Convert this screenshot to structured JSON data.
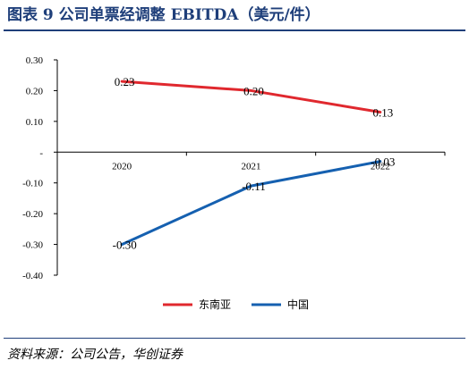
{
  "title": "图表 9 公司单票经调整 EBITDA（美元/件）",
  "source": "资料来源：公司公告，华创证券",
  "chart_data": {
    "type": "line",
    "categories": [
      "2020",
      "2021",
      "2022"
    ],
    "series": [
      {
        "name": "东南亚",
        "color": "#e0282e",
        "values": [
          0.23,
          0.2,
          0.13
        ],
        "labels": [
          "0.23",
          "0.20",
          "0.13"
        ]
      },
      {
        "name": "中国",
        "color": "#1560b0",
        "values": [
          -0.3,
          -0.11,
          -0.03
        ],
        "labels": [
          "-0.30",
          "-0.11",
          "-0.03"
        ]
      }
    ],
    "ylim": [
      -0.4,
      0.3
    ],
    "yticks": [
      0.3,
      0.2,
      0.1,
      0,
      -0.1,
      -0.2,
      -0.3,
      -0.4
    ],
    "ytick_labels": [
      "0.30",
      "0.20",
      "0.10",
      "-",
      "-0.10",
      "-0.20",
      "-0.30",
      "-0.40"
    ],
    "legend_position": "bottom",
    "grid": false
  }
}
